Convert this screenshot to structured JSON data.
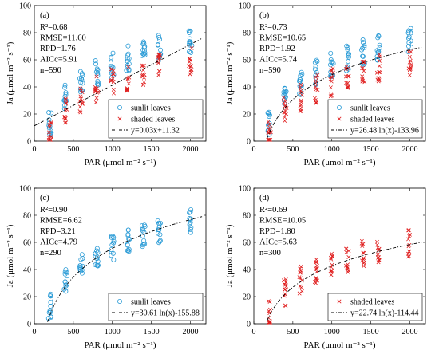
{
  "colors": {
    "sunlit": "#2a9bd6",
    "shaded": "#e02020",
    "fit": "#000000"
  },
  "chart_data": [
    {
      "type": "scatter",
      "panel_label": "(a)",
      "stats": [
        "R²=0.68",
        "RMSE=11.60",
        "RPD=1.76",
        "AICc=5.91",
        "n=590"
      ],
      "xlabel": "PAR (μmol m⁻² s⁻¹)",
      "ylabel": "Ja (μmol m⁻² s⁻¹)",
      "xlim": [
        0,
        2200
      ],
      "ylim": [
        0,
        100
      ],
      "xticks": [
        "0",
        "500",
        "1000",
        "1500",
        "2000"
      ],
      "yticks": [
        "0",
        "20",
        "40",
        "60",
        "80",
        "100"
      ],
      "series": [
        {
          "name": "sunlit leaves",
          "marker": "circle",
          "x_levels": [
            200,
            400,
            600,
            800,
            1000,
            1200,
            1400,
            1600,
            2000
          ]
        },
        {
          "name": "shaded leaves",
          "marker": "x",
          "x_levels": [
            200,
            400,
            600,
            800,
            1000,
            1200,
            1400,
            1600,
            2000
          ]
        }
      ],
      "fit": {
        "label": "y=0.03x+11.32",
        "model": "linear",
        "a": 0.03,
        "b": 11.32
      },
      "legend_placement": "bottom-right"
    },
    {
      "type": "scatter",
      "panel_label": "(b)",
      "stats": [
        "R²=0.73",
        "RMSE=10.65",
        "RPD=1.92",
        "AICc=5.74",
        "n=590"
      ],
      "xlabel": "PAR (μmol m⁻² s⁻¹)",
      "ylabel": "Ja (μmol m⁻² s⁻¹)",
      "xlim": [
        0,
        2200
      ],
      "ylim": [
        0,
        100
      ],
      "xticks": [
        "0",
        "500",
        "1000",
        "1500",
        "2000"
      ],
      "yticks": [
        "0",
        "20",
        "40",
        "60",
        "80",
        "100"
      ],
      "series": [
        {
          "name": "sunlit leaves",
          "marker": "circle",
          "x_levels": [
            200,
            400,
            600,
            800,
            1000,
            1200,
            1400,
            1600,
            2000
          ]
        },
        {
          "name": "shaded leaves",
          "marker": "x",
          "x_levels": [
            200,
            400,
            600,
            800,
            1000,
            1200,
            1400,
            1600,
            2000
          ]
        }
      ],
      "fit": {
        "label": "y=26.48 ln(x)-133.96",
        "model": "log",
        "a": 26.48,
        "b": -133.96
      },
      "legend_placement": "bottom-right"
    },
    {
      "type": "scatter",
      "panel_label": "(c)",
      "stats": [
        "R²=0.90",
        "RMSE=6.62",
        "RPD=3.21",
        "AICc=4.79",
        "n=290"
      ],
      "xlabel": "PAR (μmol m⁻² s⁻¹)",
      "ylabel": "Ja (μmol m⁻² s⁻¹)",
      "xlim": [
        0,
        2200
      ],
      "ylim": [
        0,
        100
      ],
      "xticks": [
        "0",
        "500",
        "1000",
        "1500",
        "2000"
      ],
      "yticks": [
        "0",
        "20",
        "40",
        "60",
        "80",
        "100"
      ],
      "series": [
        {
          "name": "sunlit leaves",
          "marker": "circle",
          "x_levels": [
            200,
            400,
            600,
            800,
            1000,
            1200,
            1400,
            1600,
            2000
          ]
        }
      ],
      "fit": {
        "label": "y=30.61 ln(x)-155.88",
        "model": "log",
        "a": 30.61,
        "b": -155.88
      },
      "legend_placement": "bottom-right"
    },
    {
      "type": "scatter",
      "panel_label": "(d)",
      "stats": [
        "R²=0.69",
        "RMSE=10.05",
        "RPD=1.80",
        "AICc=5.63",
        "n=300"
      ],
      "xlabel": "PAR (μmol m⁻² s⁻¹)",
      "ylabel": "Ja (μmol m⁻² s⁻¹)",
      "xlim": [
        0,
        2200
      ],
      "ylim": [
        0,
        100
      ],
      "xticks": [
        "0",
        "500",
        "1000",
        "1500",
        "2000"
      ],
      "yticks": [
        "0",
        "20",
        "40",
        "60",
        "80",
        "100"
      ],
      "series": [
        {
          "name": "shaded leaves",
          "marker": "x",
          "x_levels": [
            200,
            400,
            600,
            800,
            1000,
            1200,
            1400,
            1600,
            2000
          ]
        }
      ],
      "fit": {
        "label": "y=22.74 ln(x)-114.44",
        "model": "log",
        "a": 22.74,
        "b": -114.44
      },
      "legend_placement": "bottom-right"
    }
  ]
}
